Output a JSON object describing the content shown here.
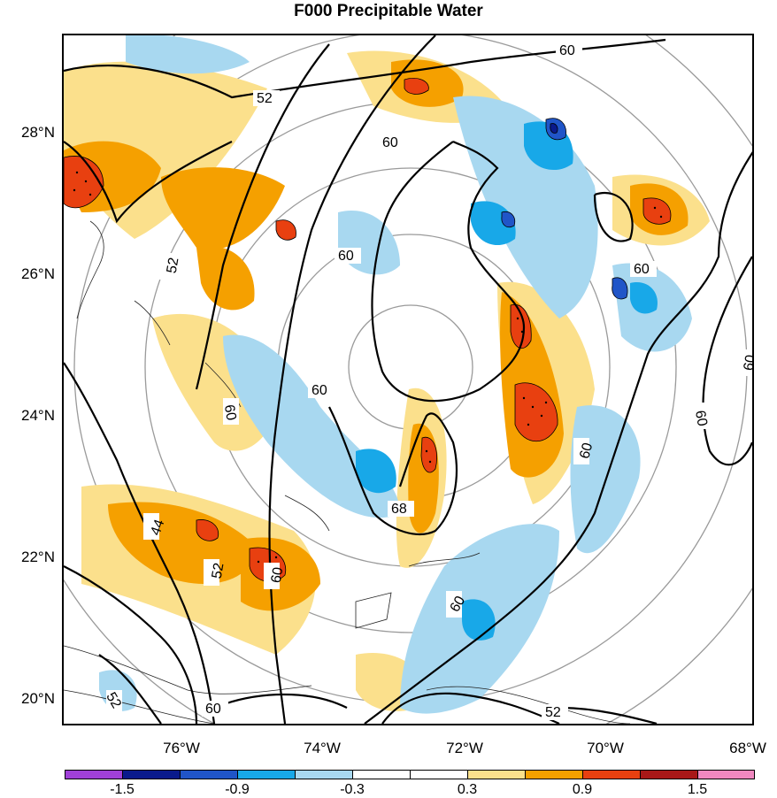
{
  "title": "F000 Precipitable Water",
  "lat_labels": [
    "28°N",
    "26°N",
    "24°N",
    "22°N",
    "20°N"
  ],
  "lon_labels": [
    "76°W",
    "74°W",
    "72°W",
    "70°W",
    "68°W"
  ],
  "contour_labels": [
    "60",
    "52",
    "60",
    "52",
    "60",
    "60",
    "60",
    "60",
    "60",
    "60",
    "60",
    "60",
    "68",
    "44",
    "52",
    "60",
    "52",
    "60",
    "52",
    "60"
  ],
  "colorbar": {
    "labels": [
      "-1.5",
      "-0.9",
      "-0.3",
      "0.3",
      "0.9",
      "1.5"
    ],
    "colors": [
      "#a040d8",
      "#0a1a8c",
      "#2055c8",
      "#18a8e8",
      "#a8d8f0",
      "#ffffff",
      "#ffffff",
      "#fbe08c",
      "#f5a000",
      "#e84010",
      "#a81818",
      "#f088c0"
    ]
  }
}
